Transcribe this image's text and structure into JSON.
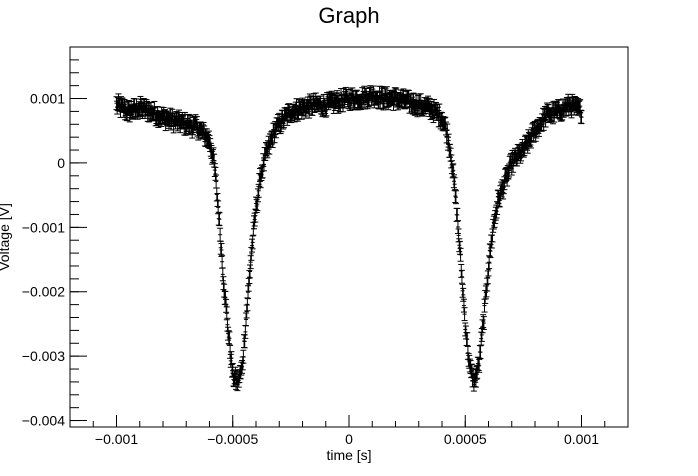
{
  "chart_data": {
    "type": "scatter",
    "title": "Graph",
    "xlabel": "time [s]",
    "ylabel": "Voltage [V]",
    "xlim": [
      -0.0012,
      0.0012
    ],
    "ylim": [
      -0.0041,
      0.0018
    ],
    "x_ticks": [
      {
        "value": -0.001,
        "label": "−0.001"
      },
      {
        "value": -0.0005,
        "label": "−0.0005"
      },
      {
        "value": 0,
        "label": "0"
      },
      {
        "value": 0.0005,
        "label": "0.0005"
      },
      {
        "value": 0.001,
        "label": "0.001"
      }
    ],
    "y_ticks": [
      {
        "value": 0.001,
        "label": "0.001"
      },
      {
        "value": 0,
        "label": "0"
      },
      {
        "value": -0.001,
        "label": "−0.001"
      },
      {
        "value": -0.002,
        "label": "−0.002"
      },
      {
        "value": -0.003,
        "label": "−0.003"
      },
      {
        "value": -0.004,
        "label": "−0.004"
      }
    ],
    "grid": false,
    "legend": "none",
    "marker": "cross with vertical error bars",
    "color": "#000000",
    "error_bar": 0.0001,
    "series": [
      {
        "x": [
          -0.001,
          -0.00095,
          -0.0009,
          -0.00085,
          -0.0008,
          -0.00075,
          -0.0007,
          -0.00065,
          -0.0006,
          -0.00058,
          -0.00056,
          -0.00054,
          -0.00052,
          -0.0005,
          -0.00048,
          -0.00046,
          -0.00044,
          -0.00042,
          -0.0004,
          -0.00038,
          -0.00036,
          -0.00034,
          -0.00032,
          -0.0003,
          -0.00025,
          -0.0002,
          -0.00015,
          -0.0001,
          -5e-05,
          0,
          5e-05,
          0.0001,
          0.00015,
          0.0002,
          0.00025,
          0.0003,
          0.00035,
          0.0004,
          0.00042,
          0.00044,
          0.00046,
          0.00048,
          0.0005,
          0.00052,
          0.00054,
          0.00056,
          0.00058,
          0.0006,
          0.00062,
          0.00064,
          0.00066,
          0.00068,
          0.0007,
          0.00075,
          0.0008,
          0.00085,
          0.0009,
          0.00095,
          0.001
        ],
        "y": [
          0.0009,
          0.0008,
          0.00085,
          0.0008,
          0.0007,
          0.00065,
          0.0006,
          0.00055,
          0.00035,
          0.0,
          -0.0008,
          -0.0018,
          -0.0026,
          -0.0033,
          -0.0034,
          -0.0032,
          -0.0023,
          -0.0014,
          -0.0007,
          -0.0002,
          0.0001,
          0.0003,
          0.0005,
          0.0006,
          0.0008,
          0.00085,
          0.0009,
          0.0009,
          0.00095,
          0.001,
          0.001,
          0.00105,
          0.001,
          0.001,
          0.00095,
          0.0009,
          0.00085,
          0.0007,
          0.0005,
          0.0001,
          -0.0006,
          -0.0015,
          -0.0025,
          -0.0032,
          -0.0034,
          -0.0031,
          -0.0024,
          -0.0016,
          -0.001,
          -0.0006,
          -0.0004,
          -0.0002,
          0.0,
          0.0002,
          0.0005,
          0.00075,
          0.0008,
          0.0009,
          0.0008
        ]
      }
    ]
  }
}
